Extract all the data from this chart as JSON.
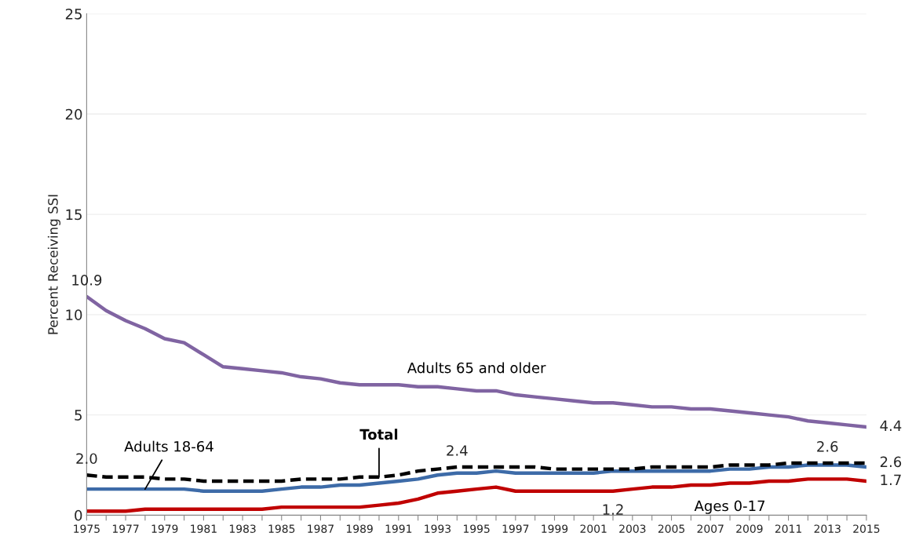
{
  "chart_data": {
    "type": "line",
    "ylabel": "Percent Receiving SSI",
    "categories": [
      "1975",
      null,
      "1977",
      null,
      "1979",
      null,
      "1981",
      null,
      "1983",
      null,
      "1985",
      null,
      "1987",
      null,
      "1989",
      null,
      "1991",
      null,
      "1993",
      null,
      "1995",
      null,
      "1997",
      null,
      "1999",
      null,
      "2001",
      null,
      "2003",
      null,
      "2005",
      null,
      "2007",
      null,
      "2009",
      null,
      "2011",
      null,
      "2013",
      null,
      "2015"
    ],
    "ylim": [
      0,
      25
    ],
    "yticks": [
      0,
      5,
      10,
      15,
      20,
      25
    ],
    "grid": "y",
    "legend": false,
    "series": [
      {
        "name": "Adults 65 and older",
        "color": "#8064a2",
        "values": [
          10.9,
          10.2,
          9.7,
          9.3,
          8.8,
          8.6,
          8.0,
          7.4,
          7.3,
          7.2,
          7.1,
          6.9,
          6.8,
          6.6,
          6.5,
          6.5,
          6.5,
          6.4,
          6.4,
          6.3,
          6.2,
          6.2,
          6.0,
          5.9,
          5.8,
          5.7,
          5.6,
          5.6,
          5.5,
          5.4,
          5.4,
          5.3,
          5.3,
          5.2,
          5.1,
          5.0,
          4.9,
          4.7,
          4.6,
          4.5,
          4.4
        ],
        "value_labels": [
          "10.9",
          null,
          null,
          null,
          null,
          null,
          null,
          null,
          null,
          null,
          null,
          null,
          null,
          null,
          null,
          null,
          null,
          null,
          null,
          null,
          null,
          null,
          null,
          null,
          null,
          null,
          null,
          null,
          null,
          null,
          null,
          null,
          null,
          null,
          null,
          null,
          null,
          null,
          null,
          null,
          "4.4"
        ]
      },
      {
        "name": "Adults 18-64",
        "color": "#3d6ba8",
        "values": [
          1.3,
          1.3,
          1.3,
          1.3,
          1.3,
          1.3,
          1.2,
          1.2,
          1.2,
          1.2,
          1.3,
          1.4,
          1.4,
          1.5,
          1.5,
          1.6,
          1.7,
          1.8,
          2.0,
          2.1,
          2.1,
          2.2,
          2.1,
          2.1,
          2.1,
          2.1,
          2.1,
          2.2,
          2.2,
          2.2,
          2.2,
          2.2,
          2.2,
          2.3,
          2.3,
          2.4,
          2.4,
          2.5,
          2.5,
          2.5,
          2.4
        ]
      },
      {
        "name": "Total",
        "color": "#000000",
        "line_style": "dashed",
        "values": [
          2.0,
          1.9,
          1.9,
          1.9,
          1.8,
          1.8,
          1.7,
          1.7,
          1.7,
          1.7,
          1.7,
          1.8,
          1.8,
          1.8,
          1.9,
          1.9,
          2.0,
          2.2,
          2.3,
          2.4,
          2.4,
          2.4,
          2.4,
          2.4,
          2.3,
          2.3,
          2.3,
          2.3,
          2.3,
          2.4,
          2.4,
          2.4,
          2.4,
          2.5,
          2.5,
          2.5,
          2.6,
          2.6,
          2.6,
          2.6,
          2.6
        ],
        "value_labels": [
          "2.0",
          null,
          null,
          null,
          null,
          null,
          null,
          null,
          null,
          null,
          null,
          null,
          null,
          null,
          null,
          null,
          null,
          null,
          null,
          "2.4",
          null,
          null,
          null,
          null,
          null,
          null,
          null,
          null,
          null,
          null,
          null,
          null,
          null,
          null,
          null,
          null,
          null,
          null,
          "2.6",
          null,
          "2.6"
        ]
      },
      {
        "name": "Ages 0-17",
        "color": "#c00000",
        "values": [
          0.2,
          0.2,
          0.2,
          0.3,
          0.3,
          0.3,
          0.3,
          0.3,
          0.3,
          0.3,
          0.4,
          0.4,
          0.4,
          0.4,
          0.4,
          0.5,
          0.6,
          0.8,
          1.1,
          1.2,
          1.3,
          1.4,
          1.2,
          1.2,
          1.2,
          1.2,
          1.2,
          1.2,
          1.3,
          1.4,
          1.4,
          1.5,
          1.5,
          1.6,
          1.6,
          1.7,
          1.7,
          1.8,
          1.8,
          1.8,
          1.7
        ],
        "value_labels": [
          null,
          null,
          null,
          null,
          null,
          null,
          null,
          null,
          null,
          null,
          null,
          null,
          null,
          null,
          null,
          null,
          null,
          null,
          null,
          null,
          null,
          null,
          null,
          null,
          null,
          null,
          null,
          "1.2",
          null,
          null,
          null,
          null,
          null,
          null,
          null,
          null,
          null,
          null,
          null,
          null,
          "1.7"
        ]
      }
    ]
  }
}
